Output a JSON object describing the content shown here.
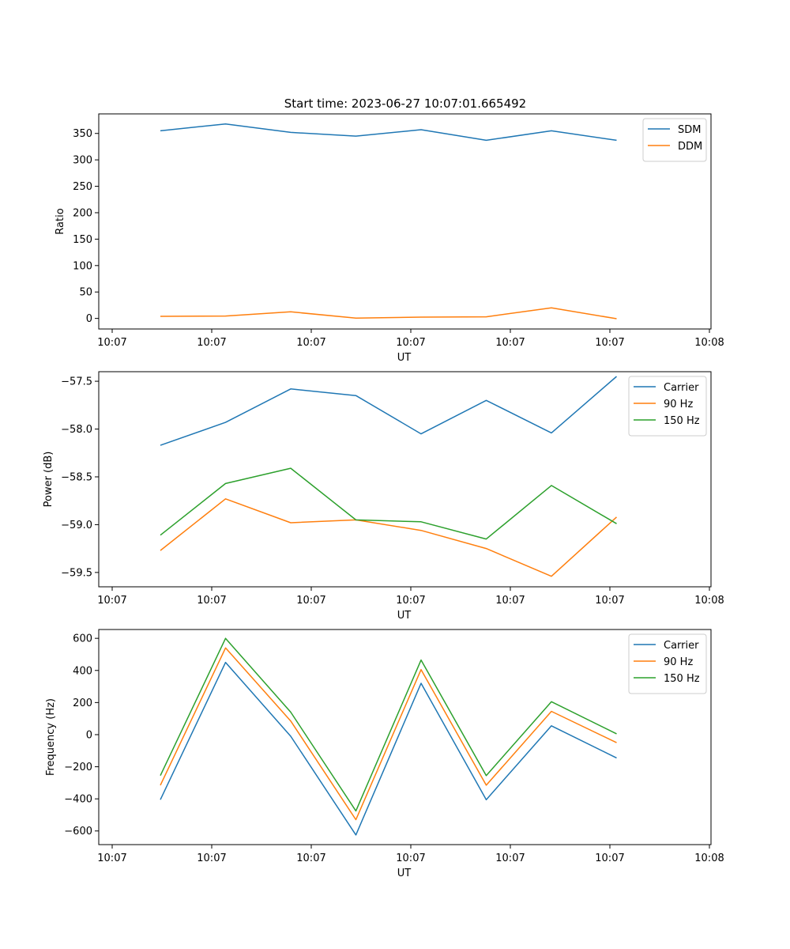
{
  "figure_title": "Start time: 2023-06-27 10:07:01.665492",
  "colors": {
    "blue": "#1f77b4",
    "orange": "#ff7f0e",
    "green": "#2ca02c"
  },
  "chart_data": [
    {
      "type": "line",
      "title": "Start time: 2023-06-27 10:07:01.665492",
      "xlabel": "UT",
      "ylabel": "Ratio",
      "x_tick_labels": [
        "10:07",
        "10:07",
        "10:07",
        "10:07",
        "10:07",
        "10:07",
        "10:08"
      ],
      "y_ticks": [
        0,
        50,
        100,
        150,
        200,
        250,
        300,
        350
      ],
      "ylim": [
        -20,
        387
      ],
      "legend_position": "top-right",
      "grid": false,
      "series": [
        {
          "name": "SDM",
          "color": "#1f77b4",
          "values": [
            355,
            368,
            352,
            345,
            357,
            337,
            355,
            337
          ]
        },
        {
          "name": "DDM",
          "color": "#ff7f0e",
          "values": [
            4,
            4.5,
            12.5,
            0.5,
            2.5,
            3,
            20,
            -0.5
          ]
        }
      ]
    },
    {
      "type": "line",
      "xlabel": "UT",
      "ylabel": "Power (dB)",
      "x_tick_labels": [
        "10:07",
        "10:07",
        "10:07",
        "10:07",
        "10:07",
        "10:07",
        "10:08"
      ],
      "y_ticks": [
        -59.5,
        -59.0,
        -58.5,
        -58.0,
        -57.5
      ],
      "y_tick_labels": [
        "−59.5",
        "−59.0",
        "−58.5",
        "−58.0",
        "−57.5"
      ],
      "ylim": [
        -59.65,
        -57.4
      ],
      "legend_position": "top-right",
      "grid": false,
      "series": [
        {
          "name": "Carrier",
          "color": "#1f77b4",
          "values": [
            -58.17,
            -57.93,
            -57.58,
            -57.65,
            -58.05,
            -57.7,
            -58.04,
            -57.45
          ]
        },
        {
          "name": "90 Hz",
          "color": "#ff7f0e",
          "values": [
            -59.27,
            -58.73,
            -58.98,
            -58.95,
            -59.06,
            -59.25,
            -59.54,
            -58.92
          ]
        },
        {
          "name": "150 Hz",
          "color": "#2ca02c",
          "values": [
            -59.11,
            -58.57,
            -58.41,
            -58.95,
            -58.97,
            -59.15,
            -58.59,
            -58.99
          ]
        }
      ]
    },
    {
      "type": "line",
      "xlabel": "UT",
      "ylabel": "Frequency (Hz)",
      "x_tick_labels": [
        "10:07",
        "10:07",
        "10:07",
        "10:07",
        "10:07",
        "10:07",
        "10:08"
      ],
      "y_ticks": [
        -600,
        -400,
        -200,
        0,
        200,
        400,
        600
      ],
      "y_tick_labels": [
        "−600",
        "−400",
        "−200",
        "0",
        "200",
        "400",
        "600"
      ],
      "ylim": [
        -685,
        655
      ],
      "legend_position": "top-right",
      "grid": false,
      "series": [
        {
          "name": "Carrier",
          "color": "#1f77b4",
          "values": [
            -405,
            450,
            -10,
            -625,
            320,
            -405,
            55,
            -145
          ]
        },
        {
          "name": "90 Hz",
          "color": "#ff7f0e",
          "values": [
            -315,
            540,
            85,
            -530,
            405,
            -315,
            145,
            -50
          ]
        },
        {
          "name": "150 Hz",
          "color": "#2ca02c",
          "values": [
            -255,
            600,
            140,
            -475,
            465,
            -255,
            205,
            5
          ]
        }
      ]
    }
  ]
}
